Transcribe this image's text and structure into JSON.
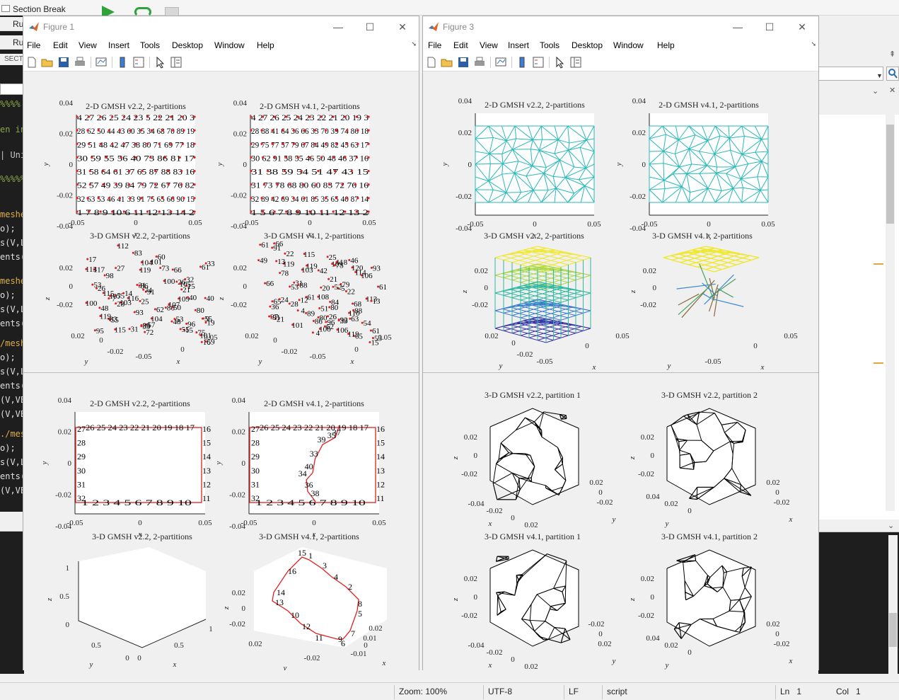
{
  "background": {
    "section_break": "Section Break",
    "run_labels": [
      "Ru",
      "Ru"
    ],
    "section_label": "SECT",
    "code_lines": [
      "%%%%",
      "en in",
      "| Uni",
      "%%%%%",
      "meshe",
      "o);",
      "s(V,L",
      "ents(",
      "meshe",
      "o);",
      "s(V,L",
      "ents(",
      "/mesh",
      "o);",
      "s(V,L",
      "ents(",
      "(V,VE",
      "(V,VE",
      "./mes",
      "o);",
      "s(V,L",
      "ents(",
      "(V,VE",
      "(V,VE",
      "(V,VE"
    ],
    "code_colors": [
      "#8aa84a",
      "#8aa84a",
      "#c5c5c5",
      "#8aa84a",
      "#dcae4a",
      "#e0e0e0",
      "#e0e0e0",
      "#e0e0e0",
      "#dcae4a",
      "#e0e0e0",
      "#e0e0e0",
      "#e0e0e0",
      "#dcae4a",
      "#e0e0e0",
      "#e0e0e0",
      "#e0e0e0",
      "#e0e0e0",
      "#e0e0e0",
      "#dcae4a",
      "#e0e0e0",
      "#e0e0e0",
      "#e0e0e0",
      "#e0e0e0",
      "#e0e0e0",
      "#e0e0e0"
    ]
  },
  "status": {
    "zoom": "Zoom: 100%",
    "encoding": "UTF-8",
    "eol": "LF",
    "type": "script",
    "ln_label": "Ln",
    "ln": "1",
    "col_label": "Col",
    "col": "1"
  },
  "menu": [
    "File",
    "Edit",
    "View",
    "Insert",
    "Tools",
    "Desktop",
    "Window",
    "Help"
  ],
  "figure1": {
    "title": "Figure 1",
    "plots": [
      {
        "title": "2-D GMSH v2.2, 2-partitions",
        "type": "2d-nodes",
        "yticks": [
          "0.04",
          "0.02",
          "0",
          "-0.02",
          "-0.04"
        ],
        "xticks": [
          "-0.05",
          "0",
          "0.05"
        ],
        "xlabel": "x",
        "ylabel": "y",
        "label_rows": [
          "4 27 26 25 24 23 5   22 21 20 3",
          "28 62 50 44 43 60 35 34 68 70 89 19",
          "29 51 48 42 47 38 80 71 69 77 18",
          "30 59 55 56 40 73 86 81 17",
          "31 58 64 61 37 65 87 88 83 16",
          "52 57 49 39 84 79 72 67 76 82",
          "32 63 53 46 41 33 91 75 65 66 90 15",
          "1   7   8  9 10 6  11 12 13 14 2"
        ]
      },
      {
        "title": "2-D GMSH v4.1, 2-partitions",
        "type": "2d-nodes",
        "yticks": [
          "0.04",
          "0.02",
          "0",
          "-0.02",
          "-0.04"
        ],
        "xticks": [
          "-0.05",
          "0",
          "0.05"
        ],
        "xlabel": "x",
        "ylabel": "y",
        "label_rows": [
          "4 27 26 25 24 23 22 21 20 19 3",
          "28 88 41 64 36 66 33 70 39 74 86 18",
          "29 75 77 57 79 67 84 49 82 45 63 17",
          "30 62 91 58 55 46 50 48 46 37 16",
          "31 38 59 54 51 47 43 15",
          "31 73 78 68 80 60 83 72 76 16",
          "32 89 42 69 34 61 85 35 65 40 87 14",
          "1   5  6  7  8  9 10 11 12 13 2"
        ]
      },
      {
        "title": "3-D GMSH v2.2, 2-partitions",
        "type": "3d-nodes",
        "zticks": [
          "0.02",
          "0",
          "-0.02"
        ],
        "yticks": [
          "0.02",
          "0",
          "-0.02"
        ],
        "xticks": [
          "-0.05",
          "0",
          "0.05"
        ],
        "xlabel": "x",
        "ylabel": "y",
        "zlabel": "z"
      },
      {
        "title": "3-D GMSH v4.1, 2-partitions",
        "type": "3d-nodes",
        "zticks": [
          "0.02",
          "0",
          "-0.02"
        ],
        "yticks": [
          "0.02",
          "0",
          "-0.02"
        ],
        "xticks": [
          "-0.05",
          "0",
          "0.05"
        ],
        "xlabel": "x",
        "ylabel": "y",
        "zlabel": "z"
      },
      {
        "title": "2-D GMSH v2.2, 2-partitions",
        "type": "2d-boundary",
        "yticks": [
          "0.04",
          "0.02",
          "0",
          "-0.02",
          "-0.04"
        ],
        "xticks": [
          "-0.05",
          "0",
          "0.05"
        ],
        "xlabel": "x",
        "ylabel": "y",
        "top_nodes": "26 25 24 23 22 21 20 19 18 17",
        "bottom_nodes": "1  2  3  4  5  6  7  8  9  10",
        "left_nodes": [
          "27",
          "28",
          "29",
          "30",
          "31",
          "32"
        ],
        "right_nodes": [
          "16",
          "15",
          "14",
          "13",
          "12",
          "11"
        ]
      },
      {
        "title": "2-D GMSH v4.1, 2-partitions",
        "type": "2d-boundary-split",
        "yticks": [
          "0.04",
          "0.02",
          "0",
          "-0.02",
          "-0.04"
        ],
        "xticks": [
          "-0.05",
          "0",
          "0.05"
        ],
        "xlabel": "x",
        "ylabel": "y",
        "top_nodes": "26 25 24 23 22 21 20 19 18 17",
        "bottom_nodes": "1  2  3  4  5  6  7  8  9  10",
        "left_nodes": [
          "27",
          "28",
          "29",
          "30",
          "31",
          "32"
        ],
        "right_nodes": [
          "16",
          "15",
          "14",
          "13",
          "12",
          "11"
        ],
        "split_nodes": [
          "37",
          "39",
          "35",
          "33",
          "40",
          "34",
          "36",
          "38"
        ]
      },
      {
        "title": "3-D GMSH v2.2, 2-partitions",
        "type": "3d-empty",
        "zticks": [
          "1",
          "0.5",
          "0"
        ],
        "yticks": [
          "0.5",
          "0"
        ],
        "xticks": [
          "0",
          "0.5",
          "1"
        ],
        "xlabel": "x",
        "ylabel": "y",
        "zlabel": "z"
      },
      {
        "title": "3-D GMSH v4.1, 2-partitions",
        "type": "3d-ring",
        "zticks": [
          "0.02",
          "0",
          "-0.02"
        ],
        "yticks": [
          "0.02",
          "-0.02"
        ],
        "xticks": [
          "0.02",
          "0.01",
          "0",
          "-0.01"
        ],
        "xlabel": "x",
        "ylabel": "y",
        "zlabel": "z",
        "ring_nodes": [
          "15",
          "1",
          "3",
          "4",
          "2",
          "8",
          "5",
          "7",
          "6",
          "9",
          "11",
          "12",
          "10",
          "13",
          "14",
          "16"
        ]
      }
    ]
  },
  "figure3": {
    "title": "Figure 3",
    "plots": [
      {
        "title": "2-D GMSH v2.2, 2-partitions",
        "type": "2d-mesh",
        "yticks": [
          "0.04",
          "0.02",
          "0",
          "-0.02",
          "-0.04"
        ],
        "xticks": [
          "-0.05",
          "0",
          "0.05"
        ],
        "xlabel": "x",
        "ylabel": "y"
      },
      {
        "title": "2-D GMSH v4.1, 2-partitions",
        "type": "2d-mesh",
        "yticks": [
          "0.04",
          "0.02",
          "0",
          "-0.02",
          "-0.04"
        ],
        "xticks": [
          "-0.05",
          "0",
          "0.05"
        ],
        "xlabel": "x",
        "ylabel": "y"
      },
      {
        "title": "3-D GMSH v2.2, 2-partitions",
        "type": "3d-mesh-color",
        "zticks": [
          "0.02",
          "0",
          "-0.02"
        ],
        "yticks": [
          "0.02",
          "0",
          "-0.02"
        ],
        "xticks": [
          "-0.05",
          "0",
          "0.05"
        ],
        "xlabel": "x",
        "ylabel": "y",
        "zlabel": "z"
      },
      {
        "title": "3-D GMSH v4.1, 2-partitions",
        "type": "3d-mesh-yellow",
        "zticks": [
          "0.02",
          "0",
          "-0.02"
        ],
        "yticks": [],
        "xticks": [
          "-0.05",
          "0",
          "0.05"
        ],
        "xlabel": "x",
        "ylabel": "y",
        "zlabel": "z"
      },
      {
        "title": "3-D GMSH v2.2, partition 1",
        "type": "3d-mesh-black",
        "zticks": [
          "0.02",
          "0",
          "-0.02"
        ],
        "yticks": [
          "0.02",
          "0",
          "-0.02"
        ],
        "xticks": [
          "-0.04",
          "-0.02",
          "0",
          "0.02"
        ],
        "xlabel": "x",
        "ylabel": "y",
        "zlabel": "z"
      },
      {
        "title": "3-D GMSH v2.2, partition 2",
        "type": "3d-mesh-black2",
        "zticks": [
          "0.02",
          "0",
          "-0.02"
        ],
        "yticks": [
          "0.02",
          "0",
          "-0.02"
        ],
        "xticks": [
          "0.04",
          "0.02",
          "0"
        ],
        "xlabel": "x",
        "ylabel": "y",
        "zlabel": "z"
      },
      {
        "title": "3-D GMSH v4.1, partition 1",
        "type": "3d-mesh-black",
        "zticks": [
          "0.02",
          "0",
          "-0.02"
        ],
        "yticks": [
          "-0.02",
          "0",
          "0.02"
        ],
        "xticks": [
          "-0.04",
          "-0.02",
          "0",
          "0.02"
        ],
        "xlabel": "x",
        "ylabel": "y",
        "zlabel": "z"
      },
      {
        "title": "3-D GMSH v4.1, partition 2",
        "type": "3d-mesh-black2",
        "zticks": [
          "0.02",
          "0",
          "-0.02"
        ],
        "yticks": [
          "0.02",
          "0",
          "-0.02"
        ],
        "xticks": [
          "0.04",
          "0.02",
          "0"
        ],
        "xlabel": "x",
        "ylabel": "y",
        "zlabel": "z"
      }
    ]
  },
  "colors": {
    "node_marker": "#e02020",
    "boundary": "#e02020",
    "mesh_2d": "#2ab8b8",
    "mesh_black": "#000000",
    "yellow": "#f0e830",
    "blue": "#3040b0"
  }
}
